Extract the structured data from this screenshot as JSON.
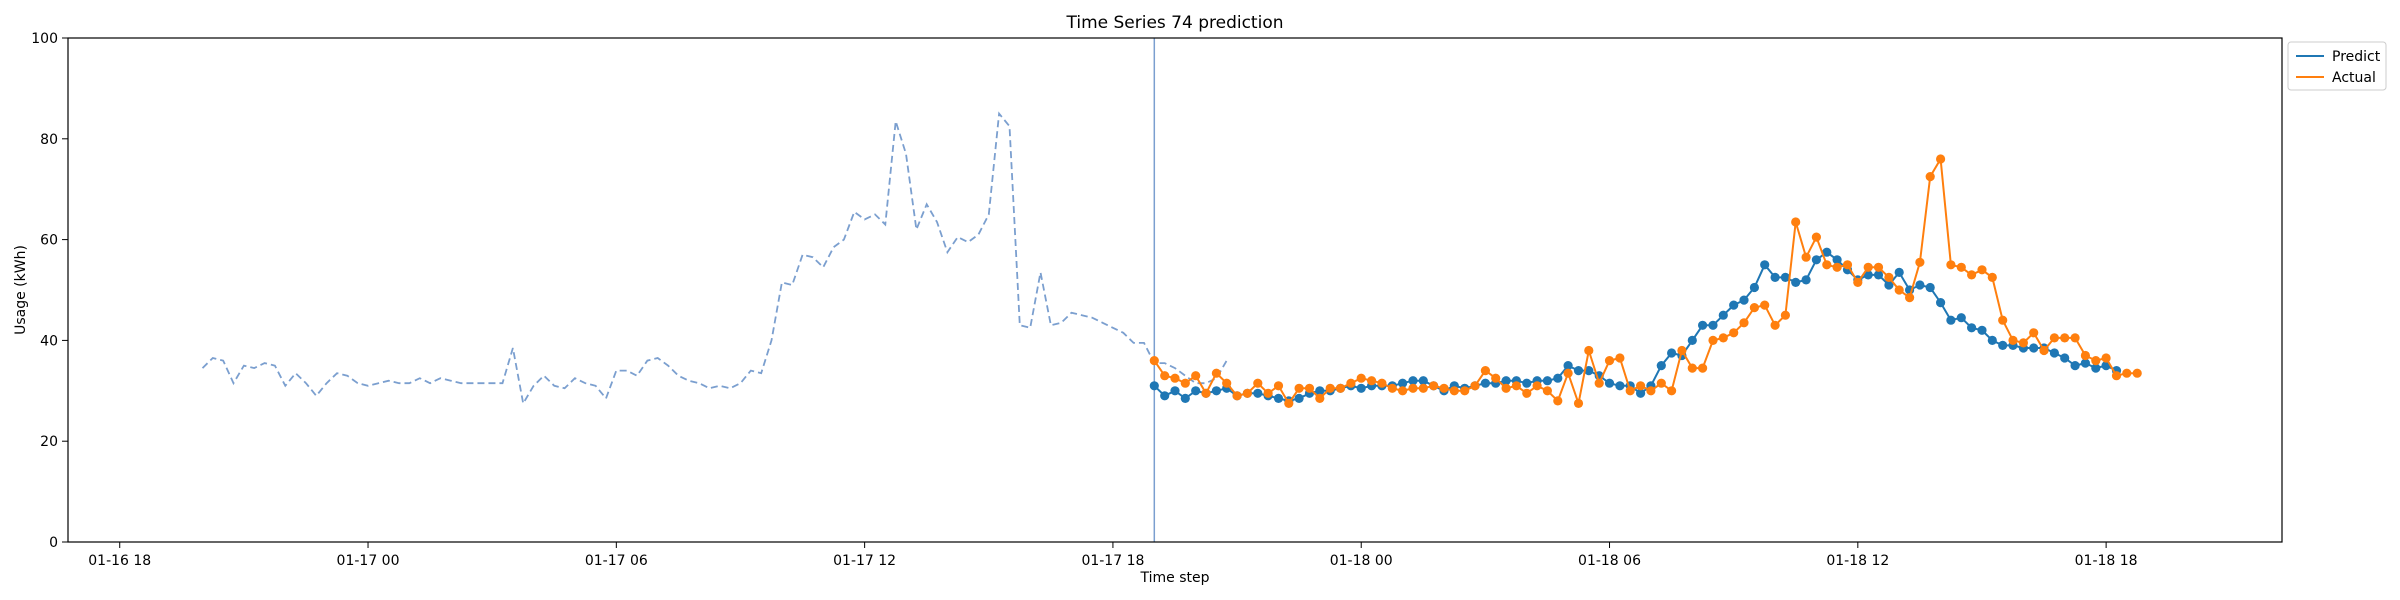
{
  "chart_data": {
    "type": "line",
    "title": "Time Series 74 prediction",
    "xlabel": "Time step",
    "ylabel": "Usage (kWh)",
    "ylim": [
      0,
      100
    ],
    "yticks": [
      0,
      20,
      40,
      60,
      80,
      100
    ],
    "xlim": [
      -1.25,
      52.25
    ],
    "xticks": [
      {
        "value": 0,
        "label": "01-16 18"
      },
      {
        "value": 6,
        "label": "01-17 00"
      },
      {
        "value": 12,
        "label": "01-17 06"
      },
      {
        "value": 18,
        "label": "01-17 12"
      },
      {
        "value": 24,
        "label": "01-17 18"
      },
      {
        "value": 30,
        "label": "01-18 00"
      },
      {
        "value": 36,
        "label": "01-18 06"
      },
      {
        "value": 42,
        "label": "01-18 12"
      },
      {
        "value": 48,
        "label": "01-18 18"
      }
    ],
    "grid": false,
    "legend_position": "top-right",
    "split_x": 25,
    "history": {
      "x0": 2,
      "step": 0.25,
      "values": [
        34.5,
        36.5,
        36,
        31.5,
        35,
        34.5,
        35.5,
        35,
        31,
        33.5,
        31.5,
        29,
        31.5,
        33.5,
        33,
        31.5,
        31,
        31.5,
        32,
        31.5,
        31.5,
        32.5,
        31.5,
        32.5,
        32,
        31.5,
        31.5,
        31.5,
        31.5,
        31.5,
        38.5,
        27.5,
        31,
        33,
        31,
        30.5,
        32.5,
        31.5,
        31,
        28.5,
        34,
        34,
        33,
        36,
        36.5,
        35,
        33,
        32,
        31.5,
        30.5,
        31,
        30.5,
        31.5,
        34,
        33.5,
        40,
        51.5,
        51,
        57,
        56.5,
        54.5,
        58.5,
        60,
        65.5,
        64,
        65,
        63,
        83.5,
        77,
        62,
        67,
        63.5,
        57.5,
        60.5,
        59.5,
        61,
        65,
        85,
        82.5,
        43,
        42.5,
        53.5,
        43,
        43.5,
        45.5,
        45,
        44.5,
        43.5,
        42.5,
        41.5,
        39.5,
        39.5,
        35.5,
        35.5,
        34.5,
        33,
        31.5,
        31.5,
        32.5,
        36
      ]
    },
    "series": [
      {
        "name": "Predict",
        "color": "#1f77b4",
        "x0": 25,
        "step": 0.25,
        "values": [
          31,
          29,
          30,
          28.5,
          30,
          29.5,
          30,
          30.5,
          29,
          29.5,
          29.5,
          29,
          28.5,
          28,
          28.5,
          29.5,
          30,
          30,
          30.5,
          31,
          30.5,
          31,
          31,
          31,
          31.5,
          32,
          32,
          31,
          30,
          31,
          30.5,
          31,
          31.5,
          31.5,
          32,
          32,
          31.5,
          32,
          32,
          32.5,
          35,
          34,
          34,
          33,
          31.5,
          31,
          31,
          29.5,
          31,
          35,
          37.5,
          37,
          40,
          43,
          43,
          45,
          47,
          48,
          50.5,
          55,
          52.5,
          52.5,
          51.5,
          52,
          56,
          57.5,
          56,
          54,
          52,
          53,
          53,
          51,
          53.5,
          50,
          51,
          50.5,
          47.5,
          44,
          44.5,
          42.5,
          42,
          40,
          39,
          39,
          38.5,
          38.5,
          38.5,
          37.5,
          36.5,
          35,
          35.5,
          34.5,
          35,
          34
        ]
      },
      {
        "name": "Actual",
        "color": "#ff7f0e",
        "x0": 25,
        "step": 0.25,
        "values": [
          36,
          33,
          32.5,
          31.5,
          33,
          29.5,
          33.5,
          31.5,
          29,
          29.5,
          31.5,
          29.5,
          31,
          27.5,
          30.5,
          30.5,
          28.5,
          30.5,
          30.5,
          31.5,
          32.5,
          32,
          31.5,
          30.5,
          30,
          30.5,
          30.5,
          31,
          30.5,
          30,
          30,
          31,
          34,
          32.5,
          30.5,
          31,
          29.5,
          31,
          30,
          28,
          33.5,
          27.5,
          38,
          31.5,
          36,
          36.5,
          30,
          31,
          30,
          31.5,
          30,
          38,
          34.5,
          34.5,
          40,
          40.5,
          41.5,
          43.5,
          46.5,
          47,
          43,
          45,
          63.5,
          56.5,
          60.5,
          55,
          54.5,
          55,
          51.5,
          54.5,
          54.5,
          52.5,
          50,
          48.5,
          55.5,
          72.5,
          76,
          55,
          54.5,
          53,
          54,
          52.5,
          44,
          40,
          39.5,
          41.5,
          38,
          40.5,
          40.5,
          40.5,
          37,
          36,
          36.5,
          33,
          33.5,
          33.5
        ]
      }
    ]
  }
}
